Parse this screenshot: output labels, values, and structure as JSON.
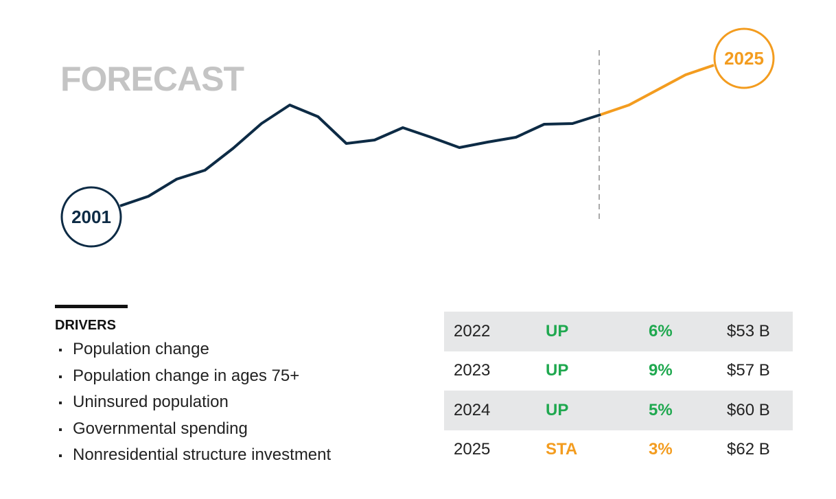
{
  "chart_data": {
    "type": "line",
    "title": "FORECAST",
    "start_label": "2001",
    "end_label": "2025",
    "ylim": [
      0,
      400
    ],
    "series": [
      {
        "color": "#0d2b45",
        "values": [
          100,
          114,
          139,
          152,
          184,
          220,
          247,
          230,
          191,
          196,
          214,
          200,
          185,
          193,
          200,
          219,
          220,
          233,
          null,
          null,
          null,
          null
        ]
      },
      {
        "color": "#f39c1f",
        "values": [
          null,
          null,
          null,
          null,
          null,
          null,
          null,
          null,
          null,
          null,
          null,
          null,
          null,
          null,
          null,
          null,
          null,
          233,
          247,
          269,
          291,
          305
        ]
      }
    ]
  },
  "drivers": {
    "heading": "DRIVERS",
    "items": [
      "Population change",
      "Population change in ages 75+",
      "Uninsured population",
      "Governmental spending",
      "Nonresidential structure investment"
    ]
  },
  "table": {
    "rows": [
      {
        "year": "2022",
        "trend": "UP",
        "change": "6%",
        "amount": "$53 B",
        "color": "#1fa84f"
      },
      {
        "year": "2023",
        "trend": "UP",
        "change": "9%",
        "amount": "$57 B",
        "color": "#1fa84f"
      },
      {
        "year": "2024",
        "trend": "UP",
        "change": "5%",
        "amount": "$60 B",
        "color": "#1fa84f"
      },
      {
        "year": "2025",
        "trend": "STA",
        "change": "3%",
        "amount": "$62 B",
        "color": "#f39c1f"
      }
    ]
  }
}
